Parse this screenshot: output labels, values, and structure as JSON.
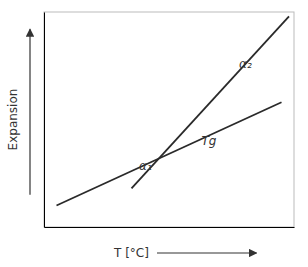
{
  "chart_data": {
    "type": "line",
    "x_label": "T [°C]",
    "y_label": "Expansion",
    "xlim": [
      0,
      10
    ],
    "ylim": [
      0,
      10
    ],
    "tick_labels": false,
    "series": [
      {
        "color": "#2a2a2a",
        "x": [
          0.5,
          9.5
        ],
        "values": [
          1.0,
          5.8
        ]
      },
      {
        "color": "#2a2a2a",
        "x": [
          3.5,
          9.8
        ],
        "values": [
          1.8,
          9.8
        ]
      }
    ],
    "annotations": [
      {
        "text": "α₁",
        "x": 3.8,
        "y": 2.85
      },
      {
        "text": "α₂",
        "x": 7.8,
        "y": 7.6
      },
      {
        "text": "Tg",
        "x": 6.3,
        "y": 4.0
      }
    ]
  }
}
